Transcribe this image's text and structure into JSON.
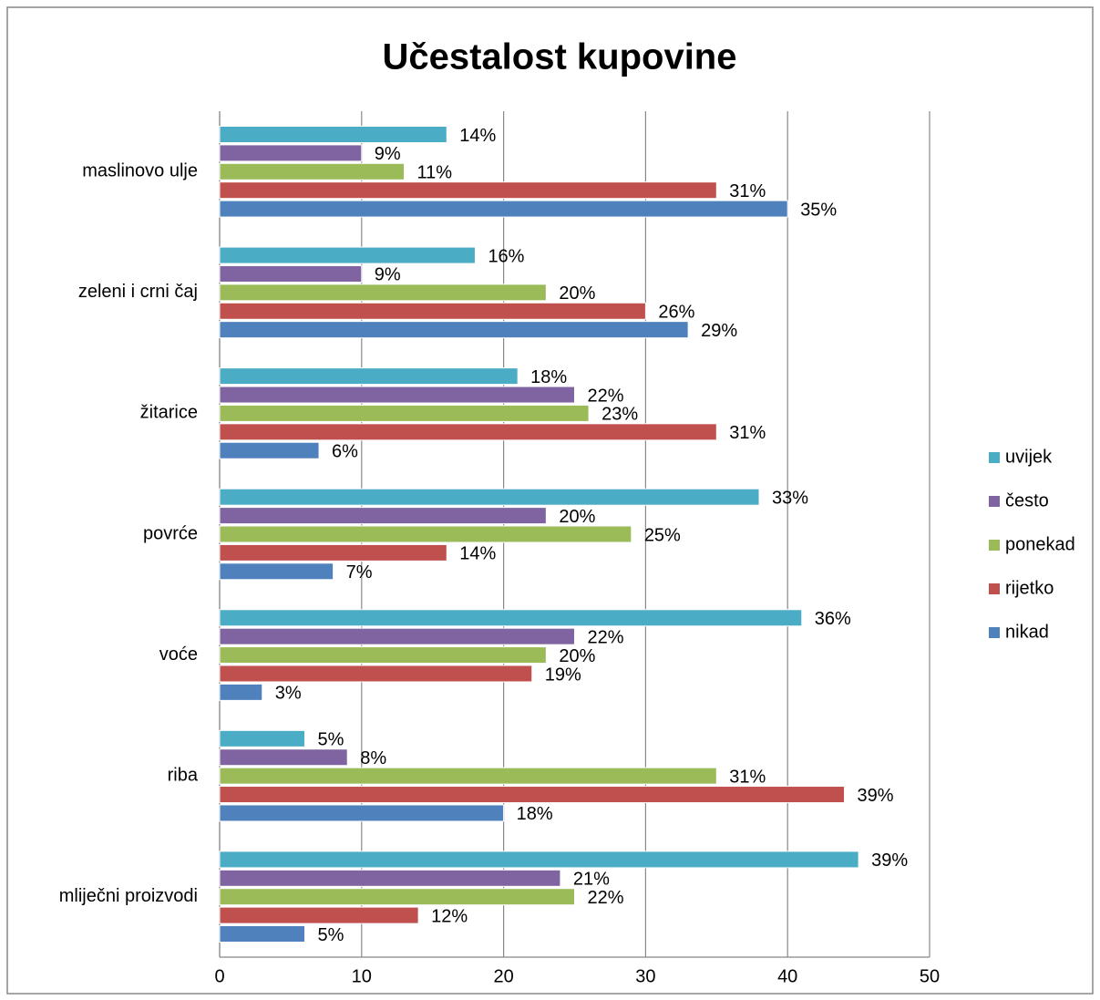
{
  "chart_data": {
    "type": "hbar",
    "title": "Učestalost kupovine",
    "categories": [
      "maslinovo ulje",
      "zeleni i crni čaj",
      "žitarice",
      "povrće",
      "voće",
      "riba",
      "mliječni proizvodi"
    ],
    "series": [
      {
        "name": "uvijek",
        "color": "#4bacc6",
        "values": [
          16,
          18,
          21,
          38,
          41,
          6,
          45
        ],
        "labels": [
          "14%",
          "16%",
          "18%",
          "33%",
          "36%",
          "5%",
          "39%"
        ]
      },
      {
        "name": "često",
        "color": "#8064a2",
        "values": [
          10,
          10,
          25,
          23,
          25,
          9,
          24
        ],
        "labels": [
          "9%",
          "9%",
          "22%",
          "20%",
          "22%",
          "8%",
          "21%"
        ]
      },
      {
        "name": "ponekad",
        "color": "#9bbb59",
        "values": [
          13,
          23,
          26,
          29,
          23,
          35,
          25
        ],
        "labels": [
          "11%",
          "20%",
          "23%",
          "25%",
          "20%",
          "31%",
          "22%"
        ]
      },
      {
        "name": "rijetko",
        "color": "#c0504d",
        "values": [
          35,
          30,
          35,
          16,
          22,
          44,
          14
        ],
        "labels": [
          "31%",
          "26%",
          "31%",
          "14%",
          "19%",
          "39%",
          "12%"
        ]
      },
      {
        "name": "nikad",
        "color": "#4f81bd",
        "values": [
          40,
          33,
          7,
          8,
          3,
          20,
          6
        ],
        "labels": [
          "35%",
          "29%",
          "6%",
          "7%",
          "3%",
          "18%",
          "5%"
        ]
      }
    ],
    "xlim": [
      0,
      50
    ],
    "xticks": [
      0,
      10,
      20,
      30,
      40,
      50
    ],
    "grid": true,
    "legend": "right"
  }
}
